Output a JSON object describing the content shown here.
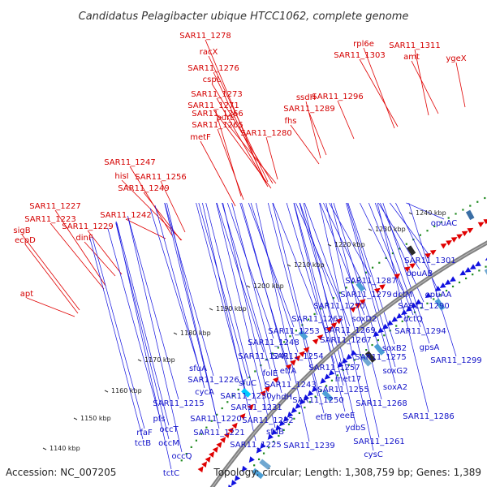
{
  "title": "Candidatus Pelagibacter ubique HTCC1062, complete genome",
  "footer": {
    "accession": "Accession: NC_007205",
    "summary": "Topology: circular; Length: 1,308,759 bp; Genes: 1,389"
  },
  "colors": {
    "forward": "#e00000",
    "reverse": "#1010e0",
    "backbone": "#808080",
    "dots": "#1f8a1f"
  },
  "scale_ticks": [
    {
      "label": "1140 kbp"
    },
    {
      "label": "1150 kbp"
    },
    {
      "label": "1160 kbp"
    },
    {
      "label": "1170 kbp"
    },
    {
      "label": "1180 kbp"
    },
    {
      "label": "1190 kbp"
    },
    {
      "label": "1200 kbp"
    },
    {
      "label": "1210 kbp"
    },
    {
      "label": "1220 kbp"
    },
    {
      "label": "1230 kbp"
    },
    {
      "label": "1240 kbp"
    }
  ],
  "forward_labels": [
    "SAR11_1278",
    "racX",
    "SAR11_1276",
    "cspL",
    "SAR11_1273",
    "SAR11_1271",
    "purE",
    "SAR11_1266",
    "SAR11_1265",
    "SAR11_1280",
    "metF",
    "ssdH",
    "SAR11_1289",
    "SAR11_1296",
    "fhs",
    "rpl6e",
    "SAR11_1303",
    "SAR11_1311",
    "amt",
    "ygeX",
    "SAR11_1247",
    "hisI",
    "SAR11_1256",
    "SAR11_1249",
    "SAR11_1227",
    "SAR11_1223",
    "sigB",
    "ecpD",
    "SAR11_1242",
    "SAR11_1229",
    "dinF",
    "apt"
  ],
  "reverse_labels": [
    "opuAC",
    "SAR11_1301",
    "opuAB",
    "SAR11_1287",
    "dctM",
    "opuAA",
    "SAR11_1279",
    "SAR11_1270",
    "SAR11_1290",
    "soxD2",
    "dctQ",
    "SAR11_1263",
    "SAR11_1269",
    "SAR11_1294",
    "SAR11_1253",
    "SAR11_1267",
    "soxB2",
    "SAR11_1248",
    "gpsA",
    "SAR11_1241",
    "SAR11_1254",
    "SAR11_1275",
    "SAR11_1299",
    "sfuA",
    "etfA",
    "SAR11_1257",
    "soxG2",
    "folE",
    "SAR11_1226",
    "sfuC",
    "met17",
    "cycA",
    "SAR11_1243",
    "SAR11_1230",
    "yhdH",
    "SAR11_1255",
    "soxA2",
    "SAR11_1250",
    "SAR11_1215",
    "SAR11_1231",
    "SAR11_1268",
    "yeeE",
    "etfB",
    "SAR11_1220",
    "pfs",
    "SAR11_1232",
    "SAR11_1286",
    "ydbS",
    "occT",
    "sfuB",
    "rfaF",
    "SAR11_1221",
    "tctB",
    "occM",
    "SAR11_1261",
    "SAR11_1225",
    "SAR11_1239",
    "cysC",
    "occQ",
    "tctC"
  ]
}
